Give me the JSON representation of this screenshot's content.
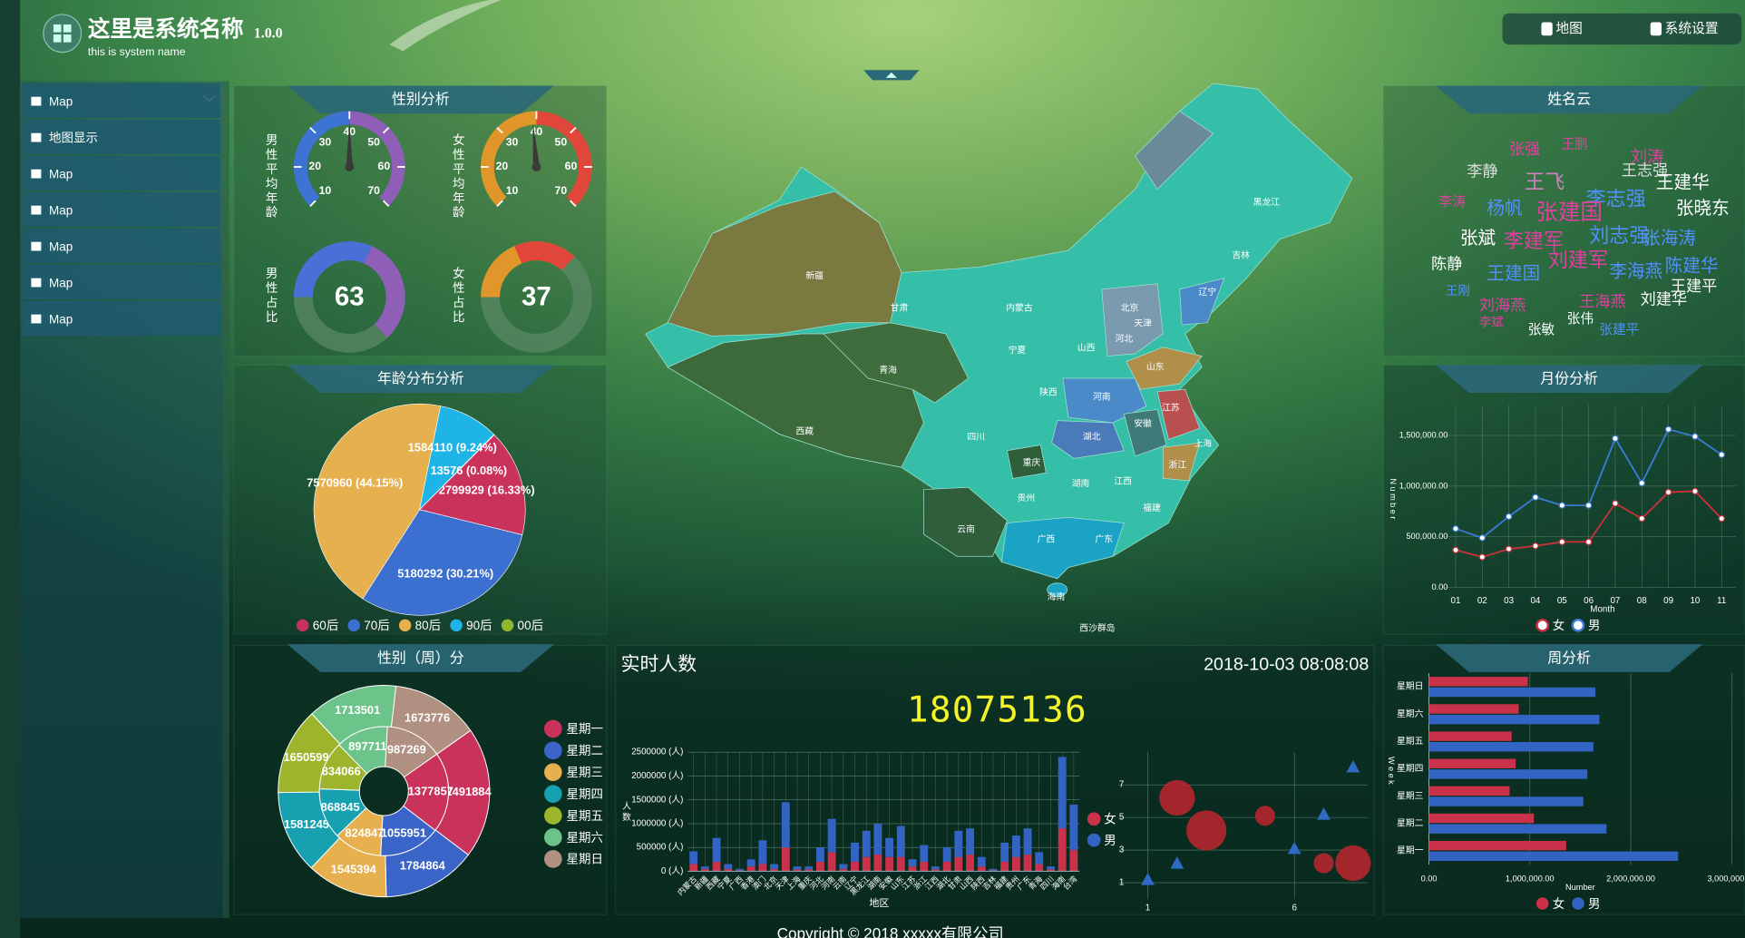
{
  "header": {
    "title": "这里是系统名称",
    "version": "1.0.0",
    "subtitle": "this is system name",
    "buttons": [
      "地图",
      "系统设置"
    ]
  },
  "menu": [
    "Map",
    "地图显示",
    "Map",
    "Map",
    "Map",
    "Map",
    "Map"
  ],
  "footer": "Copyright © 2018 xxxxx有限公司",
  "chart_data": [
    {
      "type": "gauge",
      "title": "性别分析",
      "ylim": [
        10,
        70
      ],
      "yticks": [
        10,
        20,
        30,
        40,
        50,
        60,
        70
      ],
      "series": [
        {
          "name": "男性平均年龄",
          "value": 40,
          "colors": [
            "#3d74d4",
            "#8f5fb8"
          ]
        },
        {
          "name": "女性平均年龄",
          "value": 39,
          "colors": [
            "#e0962a",
            "#e0473a"
          ]
        }
      ]
    },
    {
      "type": "donut",
      "series": [
        {
          "name": "男性占比",
          "value": 63,
          "colors": [
            "#4a6fd6",
            "#8f5fb8"
          ]
        },
        {
          "name": "女性占比",
          "value": 37,
          "colors": [
            "#e0962a",
            "#e0473a"
          ]
        }
      ]
    },
    {
      "type": "pie",
      "title": "年龄分布分析",
      "categories": [
        "60后",
        "70后",
        "80后",
        "90后",
        "00后"
      ],
      "values": [
        2799929,
        5180292,
        7570960,
        1584110,
        13576
      ],
      "value_labels": [
        "2799929 (16.33%)",
        "5180292 (30.21%)",
        "7570960 (44.15%)",
        "1584110 (9.24%)",
        "13576 (0.08%)"
      ],
      "colors": [
        "#c9325a",
        "#3b6fd0",
        "#e6b04e",
        "#1eb4e8",
        "#8db82e"
      ]
    },
    {
      "type": "nested_pie",
      "title": "性别（周）分",
      "categories": [
        "星期一",
        "星期二",
        "星期三",
        "星期四",
        "星期五",
        "星期六",
        "星期日"
      ],
      "series": [
        {
          "values": [
            2491884,
            1784864,
            1545394,
            1581245,
            1650599,
            1713501,
            1673776
          ]
        },
        {
          "values": [
            1377857,
            1055951,
            824847,
            868845,
            834066,
            897711,
            987269
          ]
        }
      ],
      "colors": [
        "#c9325a",
        "#3b64c8",
        "#e6b04e",
        "#16a0b0",
        "#9cb52c",
        "#6cc48a",
        "#b09080"
      ]
    },
    {
      "type": "map",
      "provinces": [
        "新疆",
        "西藏",
        "青海",
        "甘肃",
        "内蒙古",
        "宁夏",
        "陕西",
        "四川",
        "重庆",
        "云南",
        "贵州",
        "广西",
        "广东",
        "海南",
        "湖南",
        "湖北",
        "江西",
        "福建",
        "浙江",
        "上海",
        "江苏",
        "安徽",
        "河南",
        "山东",
        "山西",
        "河北",
        "北京",
        "天津",
        "辽宁",
        "吉林",
        "黑龙江",
        "西沙群岛"
      ]
    },
    {
      "type": "counter",
      "title": "实时人数",
      "datetime": "2018-10-03 08:08:08",
      "value": 18075136
    },
    {
      "type": "bar",
      "stacked": true,
      "xlabel": "地区",
      "ylabel": "人数",
      "categories": [
        "内蒙古",
        "新疆",
        "西藏",
        "宁夏",
        "广西",
        "香港",
        "澳门",
        "北京",
        "天津",
        "上海",
        "重庆",
        "河北",
        "河南",
        "云南",
        "辽宁",
        "黑龙江",
        "湖南",
        "安徽",
        "山东",
        "江苏",
        "浙江",
        "江西",
        "湖北",
        "甘肃",
        "山西",
        "陕西",
        "吉林",
        "福建",
        "贵州",
        "广东",
        "青海",
        "四川",
        "海南",
        "台湾"
      ],
      "series": [
        {
          "name": "女",
          "color": "#c9324a",
          "values": [
            150000,
            50000,
            200000,
            50000,
            20000,
            100000,
            150000,
            50000,
            500000,
            40000,
            40000,
            200000,
            400000,
            50000,
            200000,
            300000,
            350000,
            300000,
            300000,
            100000,
            200000,
            40000,
            200000,
            300000,
            350000,
            100000,
            20000,
            200000,
            300000,
            350000,
            150000,
            40000,
            900000,
            450000
          ]
        },
        {
          "name": "男",
          "color": "#3364c4",
          "values": [
            270000,
            50000,
            500000,
            100000,
            30000,
            150000,
            500000,
            100000,
            950000,
            60000,
            60000,
            300000,
            700000,
            100000,
            400000,
            550000,
            650000,
            400000,
            650000,
            150000,
            350000,
            60000,
            300000,
            550000,
            550000,
            200000,
            30000,
            400000,
            450000,
            550000,
            250000,
            60000,
            1500000,
            950000
          ]
        }
      ],
      "ylim": [
        0,
        2500000
      ],
      "yticks": [
        {
          "value": 0,
          "label": "0 (人)"
        },
        {
          "value": 500000,
          "label": "500000 (人)"
        },
        {
          "value": 1000000,
          "label": "1000000 (人)"
        },
        {
          "value": 1500000,
          "label": "1500000 (人)"
        },
        {
          "value": 2000000,
          "label": "2000000 (人)"
        },
        {
          "value": 2500000,
          "label": "2500000 (人)"
        }
      ]
    },
    {
      "type": "scatter",
      "xlim": [
        0,
        8.5
      ],
      "xticks": [
        1,
        6
      ],
      "ylim": [
        0,
        9
      ],
      "yticks": [
        1,
        3,
        5,
        7
      ],
      "series": [
        {
          "color": "#b5262e",
          "marker": "circle",
          "x": [
            2,
            3,
            5,
            7,
            8
          ],
          "values": [
            6.2,
            4.2,
            5.1,
            2.2,
            2.2
          ],
          "sizes": [
            16,
            18,
            9,
            9,
            16
          ]
        },
        {
          "color": "#2e6bc4",
          "marker": "triangle",
          "x": [
            1,
            2,
            6,
            7,
            8
          ],
          "values": [
            1.2,
            2.2,
            3.1,
            5.2,
            8.1
          ]
        }
      ]
    },
    {
      "type": "wordcloud",
      "title": "姓名云",
      "words": [
        "张强",
        "王鹏",
        "刘涛",
        "李静",
        "王飞",
        "王志强",
        "王建华",
        "李志强",
        "杨帆",
        "张建国",
        "张晓东",
        "李涛",
        "张斌",
        "李建军",
        "刘志强",
        "张海涛",
        "陈静",
        "王建国",
        "刘建军",
        "李海燕",
        "陈建华",
        "王建平",
        "刘建华",
        "刘海燕",
        "王海燕",
        "张伟",
        "张敏",
        "张建平",
        "王刚",
        "李斌"
      ],
      "sizes": [
        14,
        12,
        15,
        14,
        18,
        14,
        16,
        18,
        16,
        20,
        16,
        12,
        16,
        18,
        18,
        16,
        14,
        16,
        18,
        16,
        16,
        14,
        14,
        14,
        14,
        12,
        12,
        12,
        11,
        11
      ],
      "colors": [
        "#e040a0",
        "#e040a0",
        "#e040a0",
        "#dddddd",
        "#d080c0",
        "#dddddd",
        "#ffffff",
        "#5090ff",
        "#5090ff",
        "#e040a0",
        "#ffffff",
        "#e040a0",
        "#ffffff",
        "#e040a0",
        "#5090ff",
        "#5090ff",
        "#ffffff",
        "#5090ff",
        "#e040a0",
        "#5090ff",
        "#5090ff",
        "#ffffff",
        "#ffffff",
        "#e040a0",
        "#e040a0",
        "#ffffff",
        "#ffffff",
        "#5090ff",
        "#5090ff",
        "#e040a0"
      ]
    },
    {
      "type": "line",
      "title": "月份分析",
      "xlabel": "Month",
      "ylabel": "Number",
      "categories": [
        "01",
        "02",
        "03",
        "04",
        "05",
        "06",
        "07",
        "08",
        "09",
        "10",
        "11"
      ],
      "series": [
        {
          "name": "女",
          "color": "#c9323c",
          "values": [
            370000,
            300000,
            380000,
            410000,
            450000,
            450000,
            830000,
            680000,
            940000,
            950000,
            680000
          ]
        },
        {
          "name": "男",
          "color": "#3a7bd5",
          "values": [
            580000,
            490000,
            700000,
            890000,
            810000,
            810000,
            1470000,
            1030000,
            1560000,
            1490000,
            1310000
          ]
        }
      ],
      "ylim": [
        0,
        1800000
      ],
      "yticks": [
        {
          "value": 0,
          "label": "0.00"
        },
        {
          "value": 500000,
          "label": "500,000.00"
        },
        {
          "value": 1000000,
          "label": "1,000,000.00"
        },
        {
          "value": 1500000,
          "label": "1,500,000.00"
        }
      ]
    },
    {
      "type": "hbar",
      "title": "周分析",
      "xlabel": "Number",
      "ylabel": "Week",
      "categories": [
        "星期一",
        "星期二",
        "星期三",
        "星期四",
        "星期五",
        "星期六",
        "星期日"
      ],
      "series": [
        {
          "name": "女",
          "color": "#c9324a",
          "values": [
            1360000,
            1040000,
            800000,
            860000,
            820000,
            890000,
            980000
          ]
        },
        {
          "name": "男",
          "color": "#3364c4",
          "values": [
            2470000,
            1760000,
            1530000,
            1570000,
            1630000,
            1690000,
            1650000
          ]
        }
      ],
      "xlim": [
        0,
        3000000
      ],
      "xticks": [
        {
          "value": 0,
          "label": "0.00"
        },
        {
          "value": 1000000,
          "label": "1,000,000.00"
        },
        {
          "value": 2000000,
          "label": "2,000,000.00"
        },
        {
          "value": 3000000,
          "label": "3,000,000.00"
        }
      ]
    }
  ]
}
